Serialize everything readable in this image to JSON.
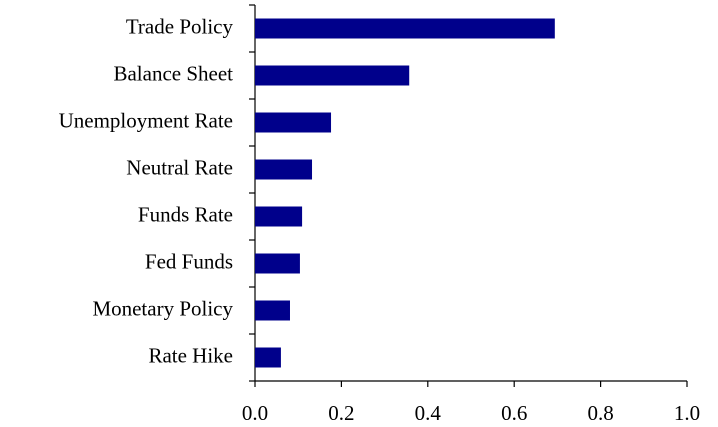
{
  "chart_data": {
    "type": "bar",
    "orientation": "horizontal",
    "categories": [
      "Trade Policy",
      "Balance Sheet",
      "Unemployment Rate",
      "Neutral Rate",
      "Funds Rate",
      "Fed Funds",
      "Monetary Policy",
      "Rate Hike"
    ],
    "values": [
      0.694,
      0.357,
      0.176,
      0.132,
      0.109,
      0.104,
      0.081,
      0.06
    ],
    "color": "#00008b",
    "xlim": [
      0,
      1.0
    ],
    "xticks": [
      {
        "value": 0,
        "label": "0.0"
      },
      {
        "value": 0.2,
        "label": "0.2"
      },
      {
        "value": 0.4,
        "label": "0.4"
      },
      {
        "value": 0.6,
        "label": "0.6"
      },
      {
        "value": 0.8,
        "label": "0.8"
      },
      {
        "value": 1.0,
        "label": "1.0"
      }
    ],
    "grid": false
  }
}
